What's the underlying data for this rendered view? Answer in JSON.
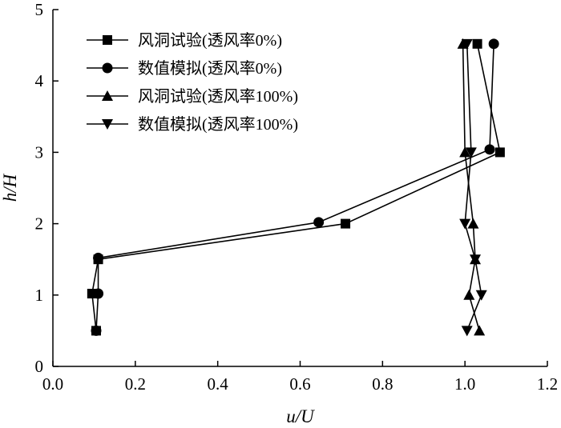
{
  "chart_data": {
    "type": "line",
    "xlabel": "u/U",
    "ylabel": "h/H",
    "xlim": [
      0,
      1.2
    ],
    "ylim": [
      0,
      5
    ],
    "xticks": [
      "0.0",
      "0.2",
      "0.4",
      "0.6",
      "0.8",
      "1.0",
      "1.2"
    ],
    "yticks": [
      "0",
      "1",
      "2",
      "3",
      "4",
      "5"
    ],
    "grid": false,
    "legend_position": "top-left",
    "series": [
      {
        "name": "风洞试验(透风率0%)",
        "marker": "square",
        "points": [
          [
            0.105,
            0.5
          ],
          [
            0.095,
            1.02
          ],
          [
            0.11,
            1.5
          ],
          [
            0.71,
            2.0
          ],
          [
            1.085,
            3.0
          ],
          [
            1.03,
            4.52
          ]
        ]
      },
      {
        "name": "数值模拟(透风率0%)",
        "marker": "circle",
        "points": [
          [
            0.105,
            0.5
          ],
          [
            0.11,
            1.02
          ],
          [
            0.11,
            1.52
          ],
          [
            0.645,
            2.02
          ],
          [
            1.06,
            3.04
          ],
          [
            1.07,
            4.52
          ]
        ]
      },
      {
        "name": "风洞试验(透风率100%)",
        "marker": "triangle-up",
        "points": [
          [
            1.035,
            0.5
          ],
          [
            1.01,
            1.0
          ],
          [
            1.025,
            1.5
          ],
          [
            1.02,
            2.0
          ],
          [
            1.0,
            3.0
          ],
          [
            0.995,
            4.52
          ]
        ]
      },
      {
        "name": "数值模拟(透风率100%)",
        "marker": "triangle-down",
        "points": [
          [
            1.005,
            0.5
          ],
          [
            1.04,
            1.0
          ],
          [
            1.025,
            1.5
          ],
          [
            1.0,
            2.0
          ],
          [
            1.015,
            3.0
          ],
          [
            1.005,
            4.52
          ]
        ]
      }
    ]
  }
}
